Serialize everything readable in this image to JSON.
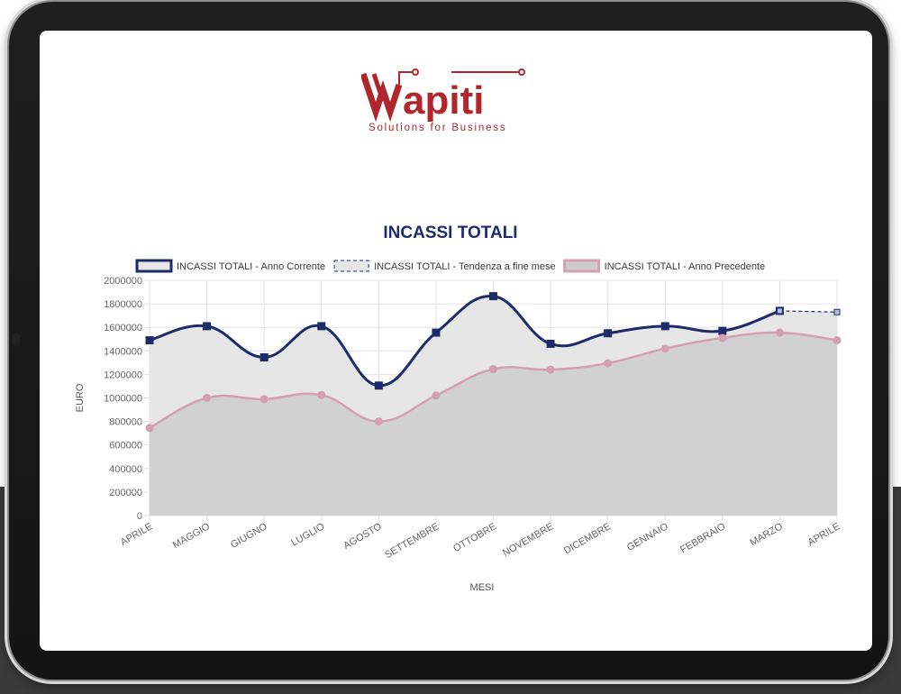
{
  "brand": {
    "name": "Wapiti",
    "tagline": "Solutions for Business",
    "color": "#b0262c"
  },
  "chart_data": {
    "type": "line",
    "title": "INCASSI TOTALI",
    "xlabel": "MESI",
    "ylabel": "EURO",
    "ylim": [
      0,
      2000000
    ],
    "yticks": [
      0,
      200000,
      400000,
      600000,
      800000,
      1000000,
      1200000,
      1400000,
      1600000,
      1800000,
      2000000
    ],
    "categories": [
      "APRILE",
      "MAGGIO",
      "GIUGNO",
      "LUGLIO",
      "AGOSTO",
      "SETTEMBRE",
      "OTTOBRE",
      "NOVEMBRE",
      "DICEMBRE",
      "GENNAIO",
      "FEBBRAIO",
      "MARZO",
      "APRILE"
    ],
    "grid": true,
    "legend_position": "top",
    "series": [
      {
        "name": "INCASSI TOTALI - Anno Corrente",
        "color": "#1d2b6b",
        "fill": "#e6e6e6",
        "style": "solid",
        "marker": "square",
        "values": [
          1490000,
          1610000,
          1345000,
          1610000,
          1105000,
          1555000,
          1865000,
          1460000,
          1550000,
          1610000,
          1570000,
          1740000,
          null
        ]
      },
      {
        "name": "INCASSI TOTALI - Tendenza a fine mese",
        "color": "#1d2b6b",
        "fill": "#e6e6e6",
        "style": "dashed",
        "marker": "square",
        "values": [
          null,
          null,
          null,
          null,
          null,
          null,
          null,
          null,
          null,
          null,
          null,
          1740000,
          1730000
        ]
      },
      {
        "name": "INCASSI TOTALI - Anno Precedente",
        "color": "#d4a0b0",
        "fill": "#cccccc",
        "style": "solid",
        "marker": "circle",
        "values": [
          745000,
          1000000,
          990000,
          1025000,
          800000,
          1020000,
          1245000,
          1240000,
          1295000,
          1420000,
          1510000,
          1555000,
          1490000
        ]
      }
    ]
  }
}
